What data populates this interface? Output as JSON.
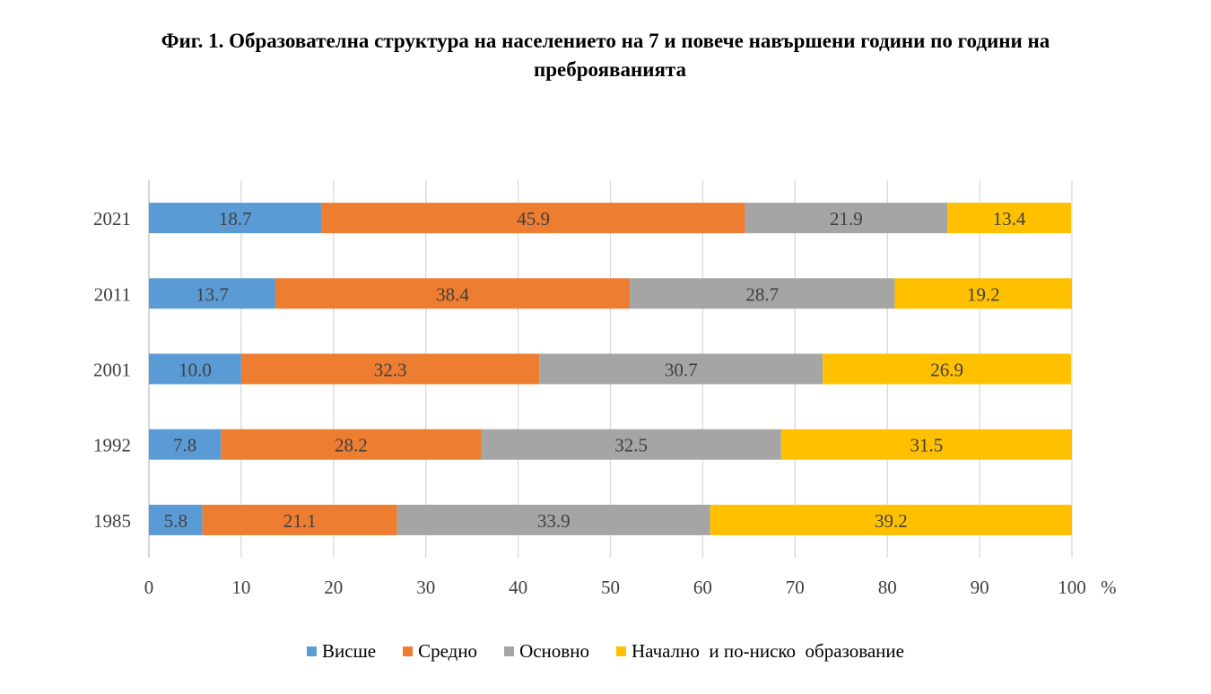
{
  "title_line1": "Фиг. 1. Образователна структура на населението на 7 и повече навършени години по години на",
  "title_line2": "преброяванията",
  "chart_data": {
    "type": "bar",
    "orientation": "horizontal",
    "stacked": true,
    "categories": [
      "2021",
      "2011",
      "2001",
      "1992",
      "1985"
    ],
    "series": [
      {
        "name": "Висше",
        "color": "#5B9BD5",
        "values": [
          18.7,
          13.7,
          10.0,
          7.8,
          5.8
        ]
      },
      {
        "name": "Средно",
        "color": "#ED7D31",
        "values": [
          45.9,
          38.4,
          32.3,
          28.2,
          21.1
        ]
      },
      {
        "name": "Основно",
        "color": "#A5A5A5",
        "values": [
          21.9,
          28.7,
          30.7,
          32.5,
          33.9
        ]
      },
      {
        "name": "Начално  и по-ниско  образование",
        "color": "#FFC000",
        "values": [
          13.4,
          19.2,
          26.9,
          31.5,
          39.2
        ]
      }
    ],
    "xlim": [
      0,
      100
    ],
    "xticks": [
      0,
      10,
      20,
      30,
      40,
      50,
      60,
      70,
      80,
      90,
      100
    ],
    "xunit": "%",
    "grid": true,
    "legend_position": "bottom"
  }
}
